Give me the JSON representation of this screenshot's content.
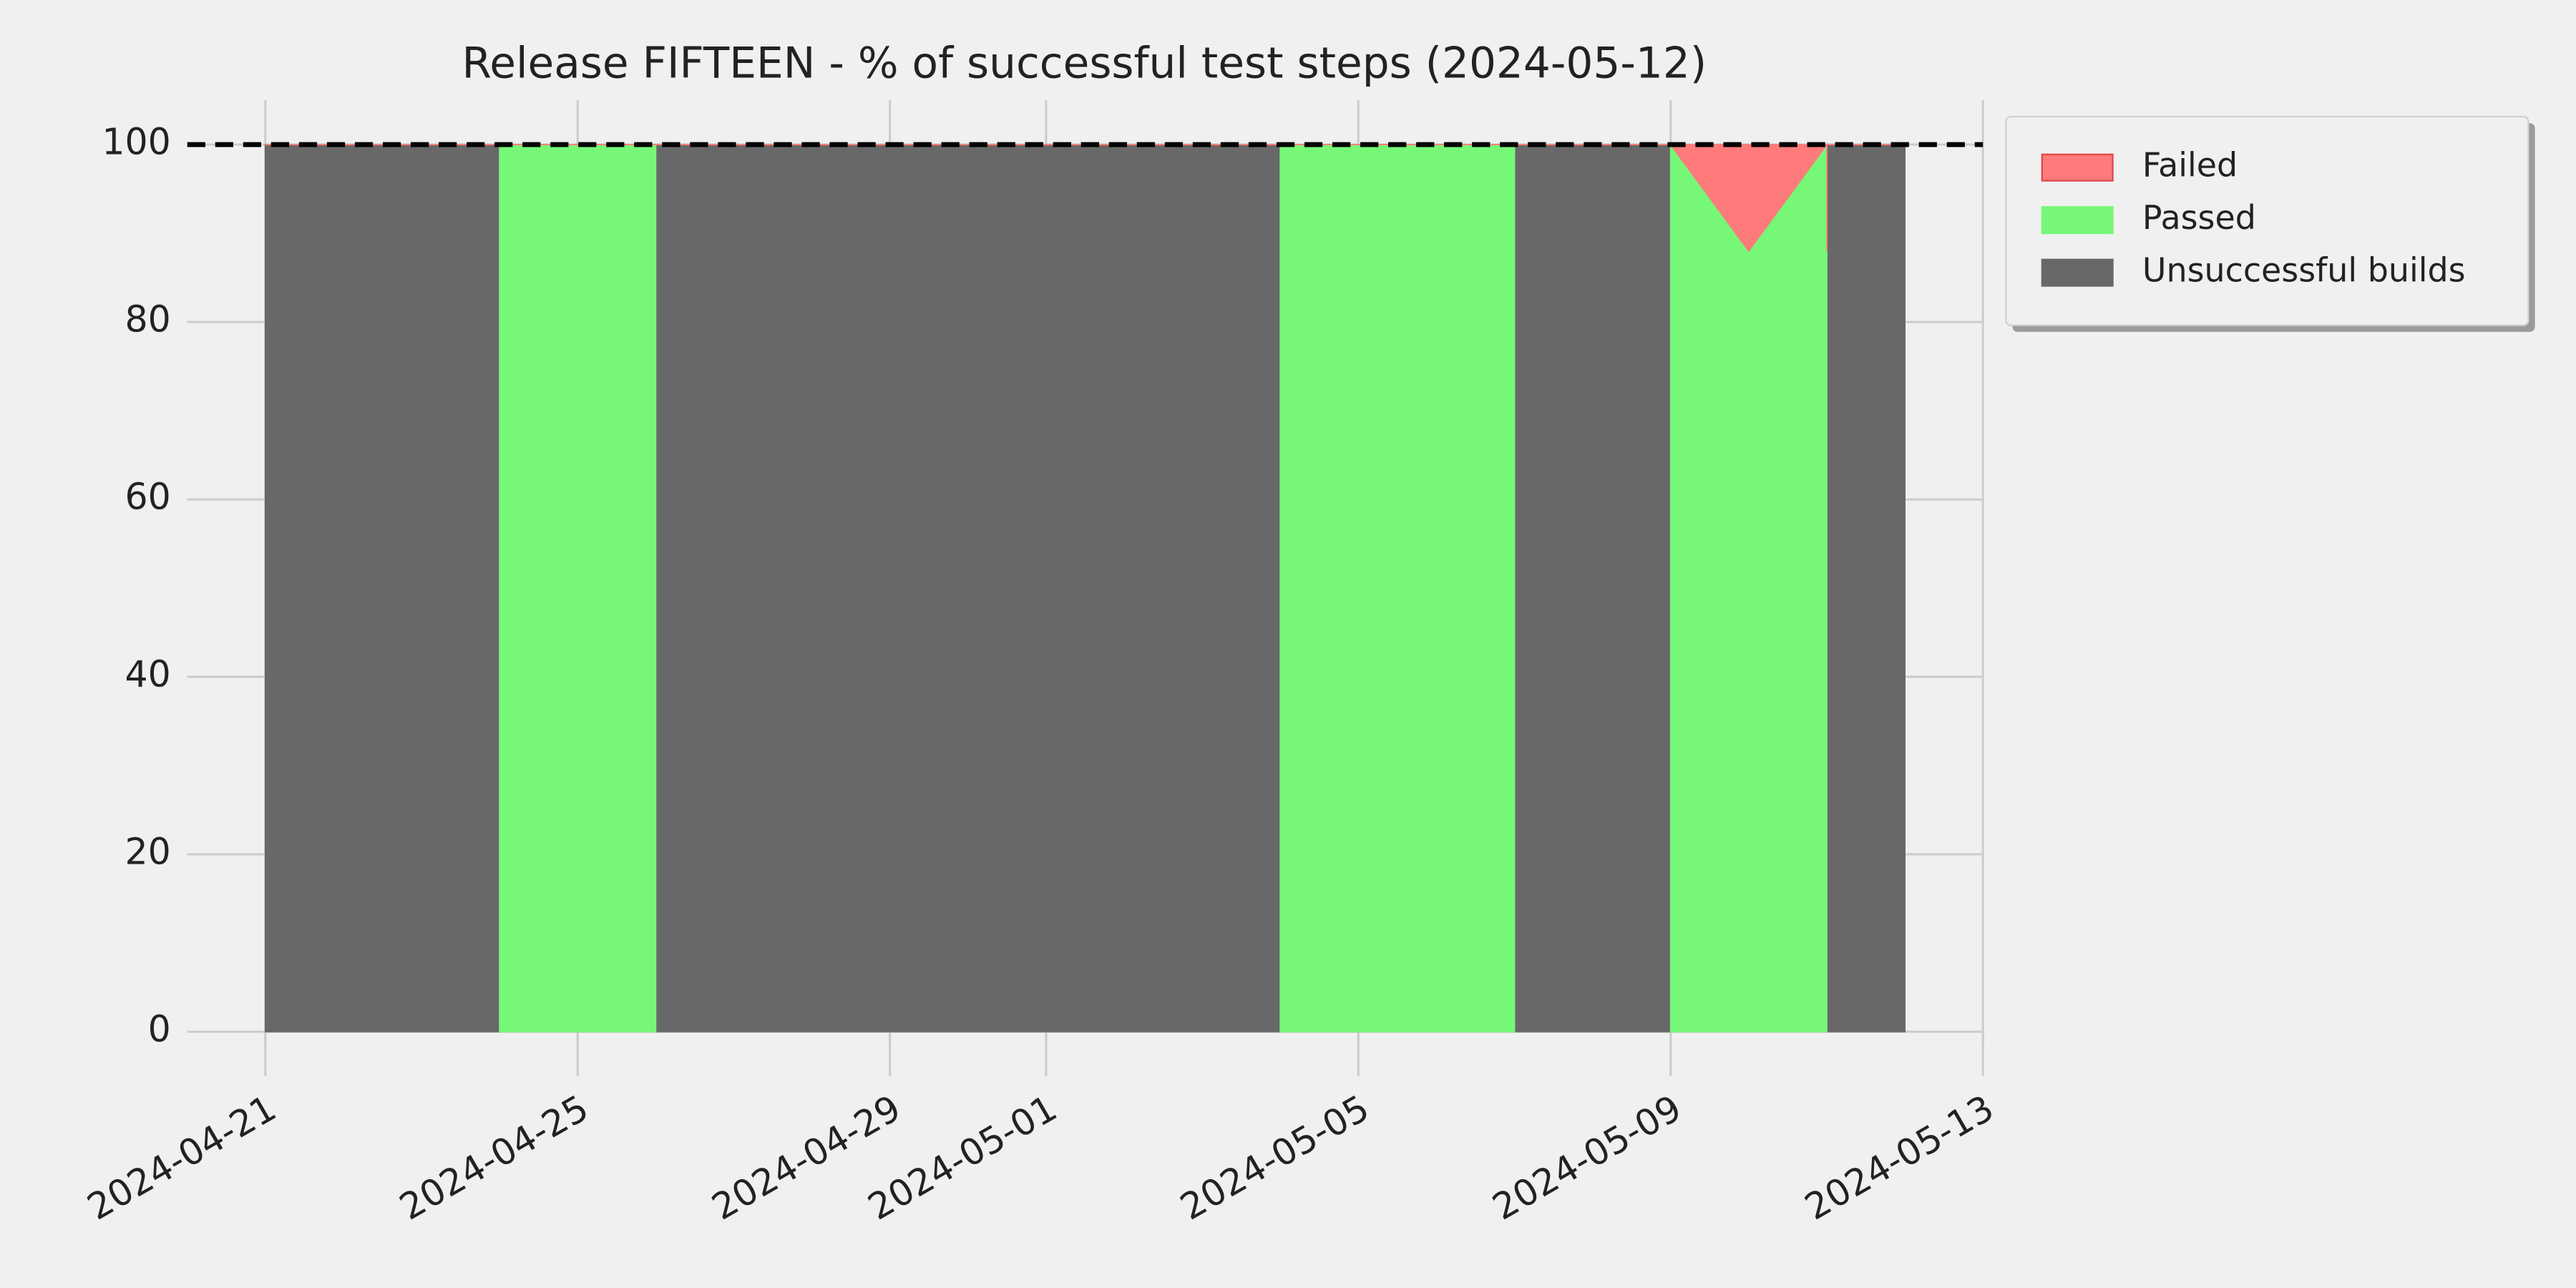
{
  "chart_data": {
    "type": "stacked-area",
    "title": "Release FIFTEEN - % of successful test steps (2024-05-12)",
    "x": [
      "2024-04-21",
      "2024-04-24",
      "2024-04-24",
      "2024-04-26",
      "2024-04-26",
      "2024-05-04",
      "2024-05-04",
      "2024-05-07",
      "2024-05-07",
      "2024-05-09",
      "2024-05-09",
      "2024-05-10",
      "2024-05-11",
      "2024-05-11",
      "2024-05-11",
      "2024-05-12"
    ],
    "series": [
      {
        "name": "Failed",
        "color": "#ff7b7b",
        "values": [
          0,
          0,
          0,
          0,
          0,
          0,
          0,
          0,
          0,
          0,
          0,
          12,
          0,
          12,
          0,
          0
        ]
      },
      {
        "name": "Passed",
        "color": "#77f777",
        "values": [
          0,
          0,
          100,
          100,
          0,
          0,
          100,
          100,
          0,
          0,
          100,
          88,
          100,
          88,
          0,
          0
        ]
      },
      {
        "name": "Unsuccessful builds",
        "color": "#686868",
        "values": [
          100,
          100,
          0,
          0,
          100,
          100,
          0,
          0,
          100,
          100,
          0,
          0,
          0,
          0,
          100,
          100
        ]
      }
    ],
    "xlim": [
      "2024-04-20",
      "2024-05-13"
    ],
    "xticks": [
      "2024-04-21",
      "2024-04-25",
      "2024-04-29",
      "2024-05-01",
      "2024-05-05",
      "2024-05-09",
      "2024-05-13"
    ],
    "ylim": [
      -5,
      105
    ],
    "yticks": [
      0,
      20,
      40,
      60,
      80,
      100
    ],
    "hline": 100,
    "grid": true,
    "legend": "upper right outside"
  }
}
